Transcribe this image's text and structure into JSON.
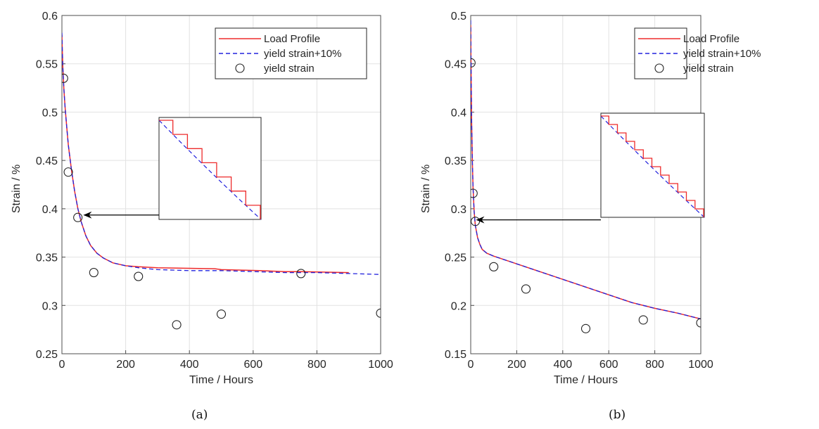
{
  "colors": {
    "load_profile": "#ee2b2b",
    "yield_plus": "#2222dd",
    "markers": "#222222",
    "grid": "#e2e2e2",
    "axis": "#4d4d4d"
  },
  "panels": [
    {
      "caption": "(a)",
      "chart_data": {
        "type": "line",
        "xlabel": "Time / Hours",
        "ylabel": "Strain / %",
        "xlim": [
          0,
          1000
        ],
        "ylim": [
          0.25,
          0.6
        ],
        "xticks": [
          0,
          200,
          400,
          600,
          800,
          1000
        ],
        "yticks": [
          0.25,
          0.3,
          0.35,
          0.4,
          0.45,
          0.5,
          0.55,
          0.6
        ],
        "grid": true,
        "legend_position": "top-right",
        "series": [
          {
            "name": "Load Profile",
            "style": "solid",
            "x": [
              0,
              1,
              3,
              6,
              10,
              15,
              20,
              30,
              40,
              50,
              60,
              75,
              90,
              110,
              130,
              160,
              200,
              240,
              300,
              480,
              500,
              620,
              700,
              750,
              900
            ],
            "y": [
              0.58,
              0.565,
              0.545,
              0.525,
              0.505,
              0.485,
              0.466,
              0.44,
              0.418,
              0.4,
              0.387,
              0.372,
              0.362,
              0.354,
              0.349,
              0.344,
              0.341,
              0.34,
              0.339,
              0.338,
              0.337,
              0.336,
              0.335,
              0.335,
              0.334
            ]
          },
          {
            "name": "yield strain+10%",
            "style": "dashed",
            "x": [
              0,
              1,
              3,
              6,
              10,
              15,
              20,
              30,
              40,
              50,
              60,
              75,
              90,
              110,
              130,
              160,
              200,
              240,
              300,
              400,
              500,
              600,
              700,
              800,
              900,
              1000
            ],
            "y": [
              0.582,
              0.565,
              0.545,
              0.525,
              0.505,
              0.485,
              0.466,
              0.44,
              0.418,
              0.4,
              0.387,
              0.372,
              0.362,
              0.354,
              0.349,
              0.344,
              0.341,
              0.339,
              0.337,
              0.336,
              0.336,
              0.335,
              0.334,
              0.334,
              0.333,
              0.332
            ]
          },
          {
            "name": "yield strain",
            "style": "markers",
            "x": [
              5,
              20,
              50,
              100,
              240,
              360,
              500,
              750,
              1000
            ],
            "y": [
              0.535,
              0.438,
              0.391,
              0.334,
              0.33,
              0.28,
              0.291,
              0.333,
              0.292
            ]
          }
        ],
        "inset": {
          "steps": 7,
          "arrow_target": [
            65,
            0.395
          ]
        }
      }
    },
    {
      "caption": "(b)",
      "chart_data": {
        "type": "line",
        "xlabel": "Time / Hours",
        "ylabel": "Strain / %",
        "xlim": [
          0,
          1000
        ],
        "ylim": [
          0.15,
          0.5
        ],
        "xticks": [
          0,
          200,
          400,
          600,
          800,
          1000
        ],
        "yticks": [
          0.15,
          0.2,
          0.25,
          0.3,
          0.35,
          0.4,
          0.45,
          0.5
        ],
        "grid": true,
        "legend_position": "top-right",
        "series": [
          {
            "name": "Load Profile",
            "style": "solid",
            "x": [
              0,
              1,
              2,
              4,
              7,
              10,
              15,
              20,
              30,
              40,
              50,
              70,
              100,
              150,
              200,
              300,
              400,
              500,
              600,
              700,
              800,
              900,
              1000
            ],
            "y": [
              0.49,
              0.46,
              0.43,
              0.39,
              0.35,
              0.322,
              0.297,
              0.283,
              0.27,
              0.263,
              0.258,
              0.254,
              0.251,
              0.247,
              0.243,
              0.235,
              0.227,
              0.219,
              0.211,
              0.203,
              0.197,
              0.192,
              0.186
            ]
          },
          {
            "name": "yield strain+10%",
            "style": "dashed",
            "x": [
              0,
              1,
              2,
              4,
              7,
              10,
              15,
              20,
              30,
              40,
              50,
              70,
              100,
              150,
              200,
              300,
              400,
              500,
              600,
              700,
              800,
              900,
              1000
            ],
            "y": [
              0.495,
              0.46,
              0.43,
              0.39,
              0.35,
              0.322,
              0.297,
              0.283,
              0.27,
              0.263,
              0.258,
              0.254,
              0.251,
              0.247,
              0.243,
              0.235,
              0.227,
              0.219,
              0.211,
              0.203,
              0.197,
              0.192,
              0.186
            ]
          },
          {
            "name": "yield strain",
            "style": "markers",
            "x": [
              1,
              10,
              20,
              100,
              240,
              500,
              750,
              1000
            ],
            "y": [
              0.451,
              0.316,
              0.287,
              0.24,
              0.217,
              0.176,
              0.185,
              0.182
            ]
          }
        ],
        "inset": {
          "steps": 12,
          "arrow_target": [
            20,
            0.29
          ]
        }
      }
    }
  ]
}
